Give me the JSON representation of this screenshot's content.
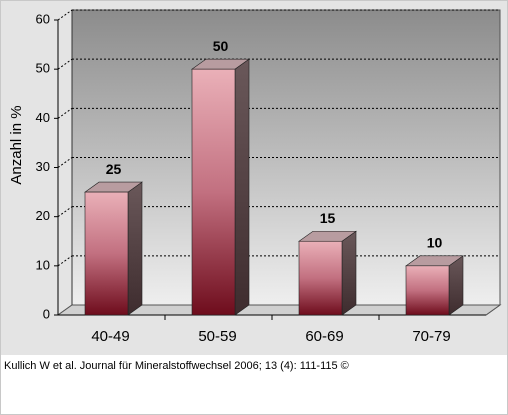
{
  "chart_data": {
    "type": "bar3d",
    "y_label": "Anzahl in %",
    "categories": [
      "40-49",
      "50-59",
      "60-69",
      "70-79"
    ],
    "values": [
      25,
      50,
      15,
      10
    ],
    "ylim": [
      0,
      60
    ],
    "yticks": [
      0,
      10,
      20,
      30,
      40,
      50,
      60
    ],
    "grid": true,
    "caption": "Kullich W et al. Journal für Mineralstoffwechsel 2006; 13 (4): 111-115 ©"
  }
}
